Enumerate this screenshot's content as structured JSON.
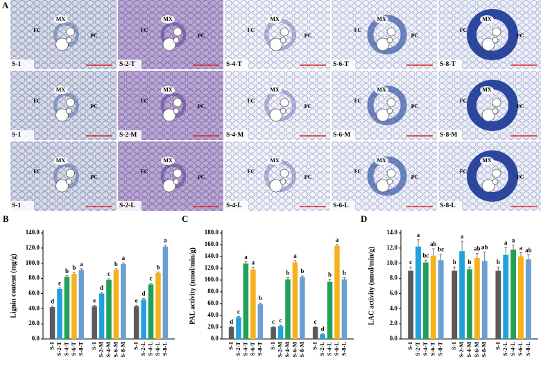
{
  "panel_a": {
    "label": "A",
    "images": [
      {
        "label": "S-1",
        "annotations": [
          "MX",
          "FC",
          "PC"
        ]
      },
      {
        "label": "S-2-T",
        "annotations": [
          "MX",
          "FC",
          "PC"
        ]
      },
      {
        "label": "S-4-T",
        "annotations": [
          "MX",
          "FC",
          "PC"
        ]
      },
      {
        "label": "S-6-T",
        "annotations": [
          "MX",
          "FC",
          "PC"
        ]
      },
      {
        "label": "S-8-T",
        "annotations": [
          "MX",
          "FC",
          "PC"
        ]
      },
      {
        "label": "S-1",
        "annotations": [
          "MX",
          "FC",
          "PC"
        ]
      },
      {
        "label": "S-2-M",
        "annotations": [
          "MX",
          "FC",
          "PC"
        ]
      },
      {
        "label": "S-4-M",
        "annotations": [
          "MX",
          "FC",
          "PC"
        ]
      },
      {
        "label": "S-6-M",
        "annotations": [
          "MX",
          "FC",
          "PC"
        ]
      },
      {
        "label": "S-8-M",
        "annotations": [
          "MX",
          "FC",
          "PC"
        ]
      },
      {
        "label": "S-1",
        "annotations": [
          "MX",
          "FC",
          "PC"
        ]
      },
      {
        "label": "S-2-L",
        "annotations": [
          "MX",
          "FC",
          "PC"
        ]
      },
      {
        "label": "S-4-L",
        "annotations": [
          "MX",
          "FC",
          "PC"
        ]
      },
      {
        "label": "S-6-L",
        "annotations": [
          "MX",
          "FC",
          "PC"
        ]
      },
      {
        "label": "S-8-L",
        "annotations": [
          "MX",
          "FC",
          "PC"
        ]
      }
    ]
  },
  "chart_data": [
    {
      "type": "bar",
      "panel": "B",
      "ylabel": "Lignin content (mg/g)",
      "categories": [
        "S-1",
        "S-2-T",
        "S-4-T",
        "S-6-T",
        "S-8-T",
        "S-1",
        "S-2-M",
        "S-4-M",
        "S-6-M",
        "S-8-M",
        "S-1",
        "S-2-L",
        "S-4-L",
        "S-6-L",
        "S-8-L"
      ],
      "values": [
        42,
        66,
        82,
        86,
        91,
        43,
        60,
        78,
        91,
        99,
        43,
        52,
        72,
        87,
        122
      ],
      "errors": [
        1.5,
        1.5,
        1.5,
        2,
        1.5,
        1.5,
        1.5,
        1.5,
        1.5,
        1.5,
        1.5,
        1.5,
        1.5,
        1.5,
        2
      ],
      "letters": [
        "d",
        "c",
        "b",
        "b",
        "a",
        "e",
        "d",
        "c",
        "b",
        "a",
        "e",
        "d",
        "c",
        "b",
        "a"
      ],
      "colors": [
        "#5a5a5a",
        "#1fa2dc",
        "#21a05a",
        "#f5b21c",
        "#6a9fd4",
        "#5a5a5a",
        "#1fa2dc",
        "#21a05a",
        "#f5b21c",
        "#6a9fd4",
        "#5a5a5a",
        "#1fa2dc",
        "#21a05a",
        "#f5b21c",
        "#6a9fd4"
      ],
      "ylim": [
        0,
        140
      ],
      "yticks": [
        {
          "value": 0,
          "label": "0.0"
        },
        {
          "value": 20,
          "label": "20.0"
        },
        {
          "value": 40,
          "label": "40.0"
        },
        {
          "value": 60,
          "label": "60.0"
        },
        {
          "value": 80,
          "label": "80.0"
        },
        {
          "value": 100,
          "label": "100.0"
        },
        {
          "value": 120,
          "label": "120.0"
        },
        {
          "value": 140,
          "label": "140.0"
        }
      ]
    },
    {
      "type": "bar",
      "panel": "C",
      "ylabel": "PAL activity (nmol/min/g)",
      "categories": [
        "S-1",
        "S-2-T",
        "S-4-T",
        "S-6-T",
        "S-8-T",
        "S-1",
        "S-2-M",
        "S-4-M",
        "S-6-M",
        "S-8-M",
        "S-1",
        "S-2-L",
        "S-4-L",
        "S-6-L",
        "S-8-L"
      ],
      "values": [
        20,
        37,
        128,
        118,
        59,
        20,
        22,
        101,
        130,
        105,
        20,
        8,
        97,
        158,
        101
      ],
      "errors": [
        1.5,
        1.5,
        3,
        4,
        2,
        1.5,
        1.5,
        3,
        3,
        2,
        1.5,
        1,
        4,
        2,
        3
      ],
      "letters": [
        "d",
        "c",
        "a",
        "a",
        "b",
        "c",
        "c",
        "b",
        "a",
        "b",
        "c",
        "d",
        "b",
        "a",
        "b"
      ],
      "colors": [
        "#5a5a5a",
        "#1fa2dc",
        "#21a05a",
        "#f5b21c",
        "#6a9fd4",
        "#5a5a5a",
        "#1fa2dc",
        "#21a05a",
        "#f5b21c",
        "#6a9fd4",
        "#5a5a5a",
        "#1fa2dc",
        "#21a05a",
        "#f5b21c",
        "#6a9fd4"
      ],
      "ylim": [
        0,
        180
      ],
      "yticks": [
        {
          "value": 0,
          "label": "0.0"
        },
        {
          "value": 20,
          "label": "20.0"
        },
        {
          "value": 40,
          "label": "40.0"
        },
        {
          "value": 60,
          "label": "60.0"
        },
        {
          "value": 80,
          "label": "80.0"
        },
        {
          "value": 100,
          "label": "100.0"
        },
        {
          "value": 120,
          "label": "120.0"
        },
        {
          "value": 140,
          "label": "140.0"
        },
        {
          "value": 160,
          "label": "160.0"
        },
        {
          "value": 180,
          "label": "180.0"
        }
      ]
    },
    {
      "type": "bar",
      "panel": "D",
      "ylabel": "LAC activity (nmol/min/g)",
      "categories": [
        "S-1",
        "S-2-T",
        "S-4-T",
        "S-6-T",
        "S-8-T",
        "S-1",
        "S-2-M",
        "S-4-M",
        "S-6-M",
        "S-8-M",
        "S-1",
        "S-2-L",
        "S-4-L",
        "S-6-L",
        "S-8-L"
      ],
      "values": [
        9.0,
        12.2,
        10.1,
        11.0,
        10.4,
        9.0,
        11.6,
        9.2,
        10.7,
        10.3,
        9.0,
        11.1,
        11.8,
        10.9,
        10.5
      ],
      "errors": [
        0.5,
        0.9,
        0.3,
        0.9,
        0.8,
        0.5,
        1.3,
        0.3,
        0.6,
        1.2,
        0.5,
        1.0,
        0.6,
        0.5,
        0.6
      ],
      "letters": [
        "c",
        "a",
        "bc",
        "ab",
        "bc",
        "b",
        "a",
        "b",
        "ab",
        "ab",
        "b",
        "a",
        "a",
        "a",
        "ab"
      ],
      "colors": [
        "#5a5a5a",
        "#1fa2dc",
        "#21a05a",
        "#f5b21c",
        "#6a9fd4",
        "#5a5a5a",
        "#1fa2dc",
        "#21a05a",
        "#f5b21c",
        "#6a9fd4",
        "#5a5a5a",
        "#1fa2dc",
        "#21a05a",
        "#f5b21c",
        "#6a9fd4"
      ],
      "ylim": [
        0,
        14
      ],
      "yticks": [
        {
          "value": 0,
          "label": "0.0"
        },
        {
          "value": 2,
          "label": "2.0"
        },
        {
          "value": 4,
          "label": "4.0"
        },
        {
          "value": 6,
          "label": "6.0"
        },
        {
          "value": 8,
          "label": "8.0"
        },
        {
          "value": 10,
          "label": "10.0"
        },
        {
          "value": 12,
          "label": "12.0"
        },
        {
          "value": 14,
          "label": "14.0"
        }
      ]
    }
  ]
}
